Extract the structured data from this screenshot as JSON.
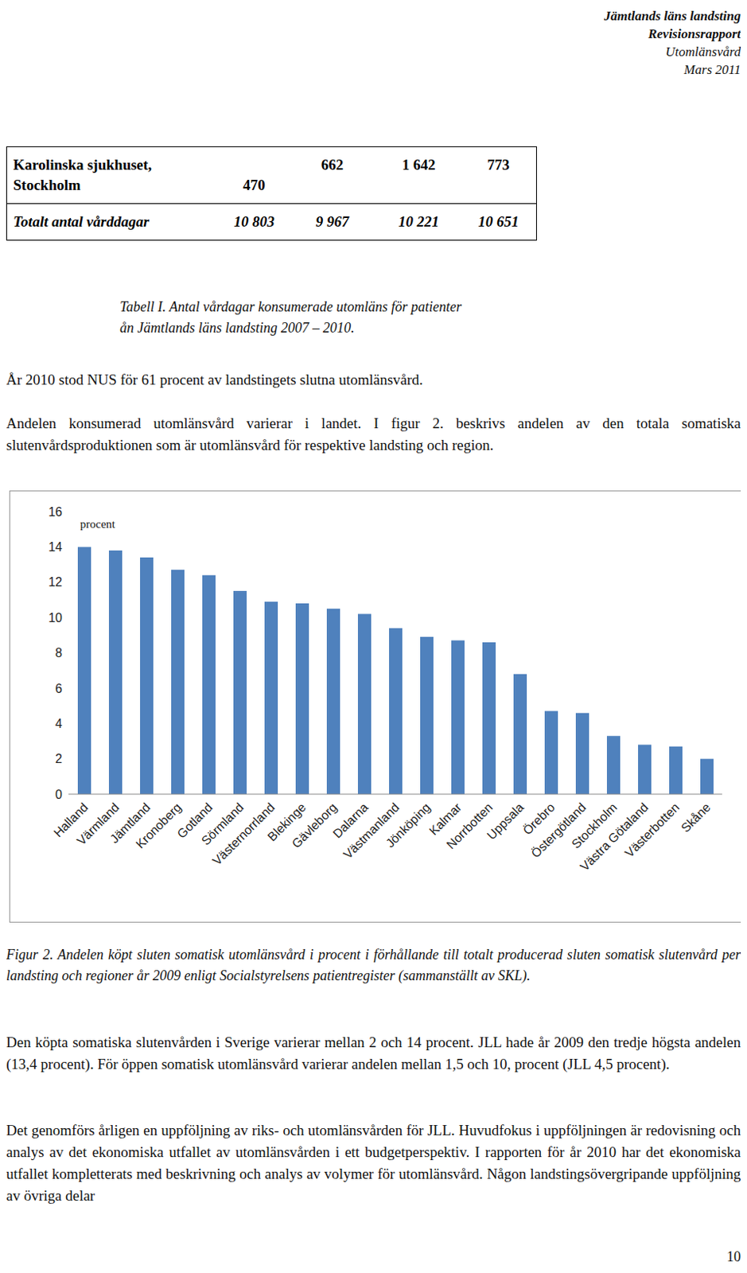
{
  "header": {
    "lines": [
      "Jämtlands läns landsting",
      "Revisionsrapport",
      "Utomlänsvård",
      "Mars 2011"
    ]
  },
  "table": {
    "rows": [
      [
        "Karolinska sjukhuset, Stockholm",
        "470",
        "662",
        "1 642",
        "773"
      ],
      [
        "Totalt antal vårddagar",
        "10 803",
        "9 967",
        "10 221",
        "10 651"
      ]
    ],
    "caption": [
      "Tabell I. Antal vårdagar konsumerade utomläns för patienter",
      "ån Jämtlands läns landsting 2007 – 2010."
    ]
  },
  "paragraphs_before": [
    "År 2010 stod NUS för 61 procent av landstingets slutna utomlänsvård.",
    "Andelen konsumerad utomlänsvård varierar i landet. I figur 2. beskrivs andelen av den totala somatiska slutenvårdsproduktionen som är utomlänsvård för respektive landsting och region."
  ],
  "chart_data": {
    "type": "bar",
    "ylabel": "procent",
    "categories": [
      "Halland",
      "Värmland",
      "Jämtland",
      "Kronoberg",
      "Gotland",
      "Sörmland",
      "Västernorrland",
      "Blekinge",
      "Gävleborg",
      "Dalarna",
      "Västmanland",
      "Jönköping",
      "Kalmar",
      "Norrbotten",
      "Uppsala",
      "Örebro",
      "Östergötland",
      "Stockholm",
      "Västra Götaland",
      "Västerbotten",
      "Skåne"
    ],
    "values": [
      14.0,
      13.8,
      13.4,
      12.7,
      12.4,
      11.5,
      10.9,
      10.8,
      10.5,
      10.2,
      9.4,
      8.9,
      8.7,
      8.6,
      6.8,
      4.7,
      4.6,
      3.3,
      2.8,
      2.7,
      2.0
    ],
    "color": "#4f81bd",
    "ylim": [
      0,
      16
    ],
    "yticks": [
      0,
      2,
      4,
      6,
      8,
      10,
      12,
      14,
      16
    ],
    "grid": false
  },
  "figure_caption": "Figur 2. Andelen köpt sluten somatisk utomlänsvård i procent i förhållande till totalt producerad sluten somatisk slutenvård per landsting och regioner år 2009 enligt Socialstyrelsens patientregister (sammanställt av SKL).",
  "paragraphs_after": [
    "Den köpta somatiska slutenvården i Sverige varierar mellan 2 och 14 procent. JLL hade år 2009 den tredje högsta andelen (13,4 procent). För öppen somatisk utomlänsvård varierar andelen mellan 1,5 och 10, procent (JLL 4,5 procent).",
    "Det genomförs årligen en uppföljning av riks- och utomlänsvården för JLL. Huvudfokus i uppföljningen är redovisning och analys av det ekonomiska utfallet av utomlänsvården i ett budgetperspektiv. I rapporten för år 2010 har det ekonomiska utfallet kompletterats med beskrivning och analys av volymer för utomlänsvård. Någon landstingsövergripande uppföljning av övriga delar"
  ],
  "page_number": "10"
}
